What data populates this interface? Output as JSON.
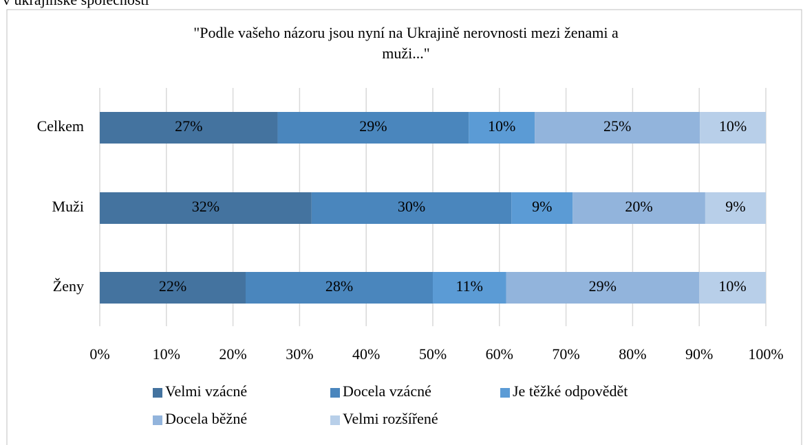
{
  "caption": "v ukrajinské společnosti",
  "chart_data": {
    "type": "stacked_barh",
    "title": "\"Podle vašeho názoru jsou nyní na Ukrajině nerovnosti mezi ženami a muži...\"",
    "categories": [
      "Celkem",
      "Muži",
      "Ženy"
    ],
    "series": [
      {
        "name": "Velmi vzácné",
        "color": "#44739f",
        "values": [
          26.7,
          31.8,
          21.9
        ],
        "value_labels": [
          "27%",
          "32%",
          "22%"
        ]
      },
      {
        "name": "Docela vzácné",
        "color": "#4a86bd",
        "values": [
          28.7,
          30.0,
          28.1
        ],
        "value_labels": [
          "29%",
          "30%",
          "28%"
        ]
      },
      {
        "name": "Je těžké odpovědět",
        "color": "#5b9bd5",
        "values": [
          9.9,
          9.2,
          11.0
        ],
        "value_labels": [
          "10%",
          "9%",
          "11%"
        ]
      },
      {
        "name": "Docela běžné",
        "color": "#92b4dc",
        "values": [
          24.8,
          19.9,
          29.0
        ],
        "value_labels": [
          "25%",
          "20%",
          "29%"
        ]
      },
      {
        "name": "Velmi rozšířené",
        "color": "#b8cfe9",
        "values": [
          9.9,
          9.1,
          10.0
        ],
        "value_labels": [
          "10%",
          "9%",
          "10%"
        ]
      }
    ],
    "xlim": [
      0,
      100
    ],
    "xticks": [
      {
        "value": 0,
        "label": "0%"
      },
      {
        "value": 10,
        "label": "10%"
      },
      {
        "value": 20,
        "label": "20%"
      },
      {
        "value": 30,
        "label": "30%"
      },
      {
        "value": 40,
        "label": "40%"
      },
      {
        "value": 50,
        "label": "50%"
      },
      {
        "value": 60,
        "label": "60%"
      },
      {
        "value": 70,
        "label": "70%"
      },
      {
        "value": 80,
        "label": "80%"
      },
      {
        "value": 90,
        "label": "90%"
      },
      {
        "value": 100,
        "label": "100%"
      }
    ],
    "grid": true,
    "legend": "bottom"
  }
}
